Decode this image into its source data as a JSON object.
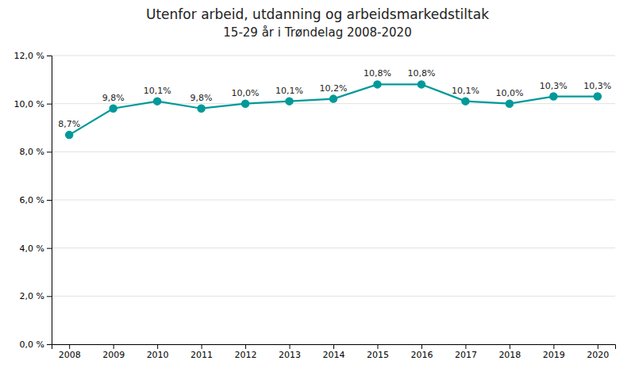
{
  "chart_data": {
    "type": "line",
    "title": "Utenfor arbeid, utdanning og arbeidsmarkedstiltak",
    "subtitle": "15-29 år i Trøndelag 2008-2020",
    "x": [
      2008,
      2009,
      2010,
      2011,
      2012,
      2013,
      2014,
      2015,
      2016,
      2017,
      2018,
      2019,
      2020
    ],
    "values": [
      8.7,
      9.8,
      10.1,
      9.8,
      10.0,
      10.1,
      10.2,
      10.8,
      10.8,
      10.1,
      10.0,
      10.3,
      10.3
    ],
    "value_labels": [
      "8,7%",
      "9,8%",
      "10,1%",
      "9,8%",
      "10,0%",
      "10,1%",
      "10,2%",
      "10,8%",
      "10,8%",
      "10,1%",
      "10,0%",
      "10,3%",
      "10,3%"
    ],
    "data_labels": true,
    "color": "#009999",
    "marker": "circle",
    "xlim": [
      2007.6,
      2020.4
    ],
    "xticks": [
      2008,
      2009,
      2010,
      2011,
      2012,
      2013,
      2014,
      2015,
      2016,
      2017,
      2018,
      2019,
      2020
    ],
    "ylim": [
      0.0,
      12.0
    ],
    "yticks": [
      {
        "value": 0.0,
        "label": "0,0 %"
      },
      {
        "value": 2.0,
        "label": "2,0 %"
      },
      {
        "value": 4.0,
        "label": "4,0 %"
      },
      {
        "value": 6.0,
        "label": "6,0 %"
      },
      {
        "value": 8.0,
        "label": "8,0 %"
      },
      {
        "value": 10.0,
        "label": "10,0 %"
      },
      {
        "value": 12.0,
        "label": "12,0 %"
      }
    ],
    "grid": "y"
  }
}
